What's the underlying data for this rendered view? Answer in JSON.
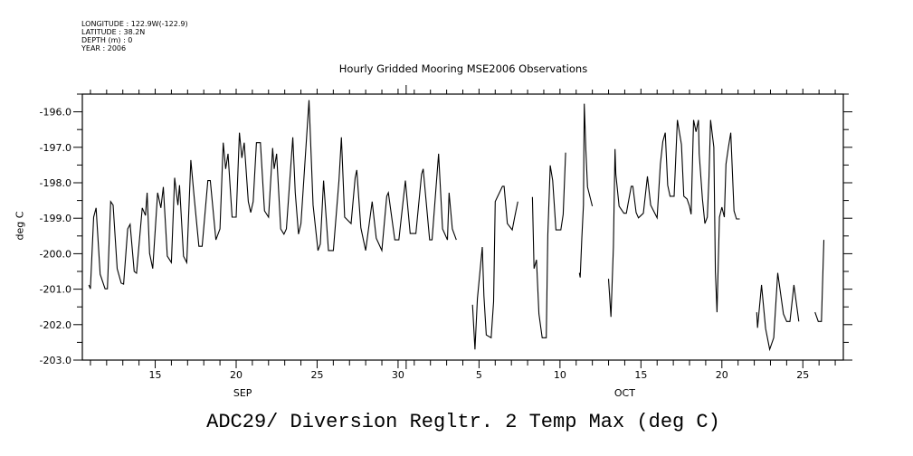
{
  "header": {
    "longitude": "LONGITUDE : 122.9W(-122.9)",
    "latitude": "LATITUDE : 38.2N",
    "depth": "DEPTH (m) : 0",
    "year": "YEAR : 2006"
  },
  "chart_data": {
    "type": "line",
    "title": "Hourly Gridded Mooring MSE2006 Observations",
    "xlabel": "",
    "ylabel": "deg C",
    "caption": "ADC29/ Diversion Regltr. 2 Temp Max (deg C)",
    "x_units": "day (Sep 1 = 1; Oct 5 = 35)",
    "xlim": [
      10.5,
      57.5
    ],
    "ylim": [
      -203.0,
      -195.5
    ],
    "grid": false,
    "x_ticks": [
      {
        "day": 15,
        "label": "15"
      },
      {
        "day": 20,
        "label": "20"
      },
      {
        "day": 25,
        "label": "25"
      },
      {
        "day": 30,
        "label": "30"
      },
      {
        "day": 35,
        "label": "5"
      },
      {
        "day": 40,
        "label": "10"
      },
      {
        "day": 45,
        "label": "15"
      },
      {
        "day": 50,
        "label": "20"
      },
      {
        "day": 55,
        "label": "25"
      }
    ],
    "month_labels": [
      {
        "day": 20.4,
        "label": "SEP"
      },
      {
        "day": 44.0,
        "label": "OCT"
      }
    ],
    "month_boundary_day": 30.5,
    "y_ticks": [
      "-196.0",
      "-197.0",
      "-198.0",
      "-199.0",
      "-200.0",
      "-201.0",
      "-202.0",
      "-203.0"
    ],
    "y_tick_values": [
      -196,
      -197,
      -198,
      -199,
      -200,
      -201,
      -202,
      -203
    ],
    "segments": [
      [
        [
          10.9,
          -200.88
        ],
        [
          11.0,
          -200.99
        ],
        [
          11.2,
          -198.97
        ],
        [
          11.35,
          -198.71
        ],
        [
          11.6,
          -200.58
        ],
        [
          11.9,
          -200.99
        ],
        [
          12.05,
          -200.99
        ],
        [
          12.25,
          -198.53
        ],
        [
          12.4,
          -198.63
        ],
        [
          12.65,
          -200.42
        ],
        [
          12.9,
          -200.83
        ],
        [
          13.05,
          -200.86
        ],
        [
          13.3,
          -199.3
        ],
        [
          13.45,
          -199.17
        ],
        [
          13.7,
          -200.5
        ],
        [
          13.85,
          -200.55
        ],
        [
          14.2,
          -198.71
        ],
        [
          14.4,
          -198.92
        ],
        [
          14.5,
          -198.28
        ],
        [
          14.65,
          -199.99
        ],
        [
          14.85,
          -200.42
        ],
        [
          15.15,
          -198.28
        ],
        [
          15.35,
          -198.71
        ],
        [
          15.5,
          -198.12
        ],
        [
          15.75,
          -200.07
        ],
        [
          16.0,
          -200.25
        ],
        [
          16.2,
          -197.86
        ],
        [
          16.4,
          -198.63
        ],
        [
          16.5,
          -198.07
        ],
        [
          16.75,
          -200.07
        ],
        [
          16.95,
          -200.25
        ],
        [
          17.2,
          -197.36
        ],
        [
          17.4,
          -198.38
        ],
        [
          17.7,
          -199.79
        ],
        [
          17.9,
          -199.79
        ],
        [
          18.25,
          -197.94
        ],
        [
          18.4,
          -197.94
        ],
        [
          18.75,
          -199.61
        ],
        [
          19.0,
          -199.3
        ],
        [
          19.2,
          -196.87
        ],
        [
          19.35,
          -197.61
        ],
        [
          19.5,
          -197.18
        ],
        [
          19.75,
          -198.97
        ],
        [
          20.0,
          -198.97
        ],
        [
          20.2,
          -196.59
        ],
        [
          20.35,
          -197.3
        ],
        [
          20.5,
          -196.87
        ],
        [
          20.75,
          -198.53
        ],
        [
          20.9,
          -198.84
        ],
        [
          21.05,
          -198.53
        ],
        [
          21.25,
          -196.87
        ],
        [
          21.5,
          -196.87
        ],
        [
          21.75,
          -198.79
        ],
        [
          22.0,
          -198.97
        ],
        [
          22.25,
          -197.02
        ],
        [
          22.35,
          -197.61
        ],
        [
          22.5,
          -197.18
        ],
        [
          22.75,
          -199.3
        ],
        [
          22.95,
          -199.45
        ],
        [
          23.1,
          -199.3
        ],
        [
          23.5,
          -196.72
        ],
        [
          23.65,
          -198.28
        ],
        [
          23.85,
          -199.45
        ],
        [
          24.0,
          -199.15
        ],
        [
          24.5,
          -195.67
        ],
        [
          24.75,
          -198.63
        ],
        [
          25.05,
          -199.91
        ],
        [
          25.2,
          -199.73
        ],
        [
          25.4,
          -197.94
        ],
        [
          25.7,
          -199.91
        ],
        [
          26.0,
          -199.91
        ],
        [
          26.35,
          -197.94
        ],
        [
          26.5,
          -196.72
        ],
        [
          26.7,
          -198.97
        ],
        [
          27.1,
          -199.15
        ],
        [
          27.35,
          -197.86
        ],
        [
          27.45,
          -197.64
        ],
        [
          27.7,
          -199.27
        ],
        [
          28.0,
          -199.91
        ],
        [
          28.4,
          -198.53
        ],
        [
          28.65,
          -199.56
        ],
        [
          29.0,
          -199.91
        ],
        [
          29.3,
          -198.38
        ],
        [
          29.4,
          -198.28
        ],
        [
          29.8,
          -199.61
        ],
        [
          30.05,
          -199.61
        ],
        [
          30.45,
          -197.94
        ],
        [
          30.75,
          -199.43
        ],
        [
          31.1,
          -199.43
        ],
        [
          31.45,
          -197.76
        ],
        [
          31.55,
          -197.61
        ],
        [
          31.95,
          -199.61
        ],
        [
          32.1,
          -199.61
        ],
        [
          32.5,
          -197.18
        ],
        [
          32.75,
          -199.3
        ],
        [
          33.05,
          -199.61
        ],
        [
          33.15,
          -198.28
        ],
        [
          33.35,
          -199.3
        ],
        [
          33.6,
          -199.61
        ]
      ],
      [
        [
          34.6,
          -201.44
        ],
        [
          34.75,
          -202.7
        ],
        [
          34.9,
          -201.27
        ],
        [
          35.2,
          -199.81
        ],
        [
          35.3,
          -201.19
        ],
        [
          35.45,
          -202.29
        ],
        [
          35.75,
          -202.37
        ],
        [
          35.9,
          -201.35
        ],
        [
          36.0,
          -198.53
        ],
        [
          36.45,
          -198.1
        ],
        [
          36.55,
          -198.1
        ],
        [
          36.75,
          -199.15
        ],
        [
          37.05,
          -199.33
        ],
        [
          37.2,
          -198.97
        ],
        [
          37.4,
          -198.53
        ]
      ],
      [
        [
          38.3,
          -198.4
        ],
        [
          38.4,
          -200.42
        ],
        [
          38.55,
          -200.17
        ],
        [
          38.7,
          -201.7
        ],
        [
          38.9,
          -202.37
        ],
        [
          39.15,
          -202.37
        ],
        [
          39.25,
          -199.48
        ],
        [
          39.4,
          -197.51
        ],
        [
          39.55,
          -197.94
        ],
        [
          39.75,
          -199.33
        ],
        [
          40.05,
          -199.33
        ],
        [
          40.2,
          -198.89
        ],
        [
          40.35,
          -197.15
        ]
      ],
      [
        [
          41.2,
          -200.54
        ],
        [
          41.25,
          -200.67
        ],
        [
          41.35,
          -199.56
        ],
        [
          41.45,
          -198.63
        ],
        [
          41.5,
          -195.77
        ],
        [
          41.6,
          -197.1
        ],
        [
          41.7,
          -198.12
        ],
        [
          42.0,
          -198.66
        ]
      ],
      [
        [
          43.0,
          -200.71
        ],
        [
          43.15,
          -201.78
        ],
        [
          43.3,
          -199.81
        ],
        [
          43.4,
          -197.05
        ],
        [
          43.45,
          -197.76
        ],
        [
          43.65,
          -198.66
        ],
        [
          43.95,
          -198.86
        ],
        [
          44.1,
          -198.86
        ],
        [
          44.4,
          -198.1
        ],
        [
          44.5,
          -198.1
        ],
        [
          44.7,
          -198.84
        ],
        [
          44.85,
          -198.99
        ],
        [
          45.15,
          -198.86
        ],
        [
          45.4,
          -197.82
        ],
        [
          45.6,
          -198.63
        ],
        [
          46.0,
          -198.99
        ],
        [
          46.2,
          -197.48
        ],
        [
          46.35,
          -196.84
        ],
        [
          46.5,
          -196.59
        ],
        [
          46.65,
          -198.07
        ],
        [
          46.8,
          -198.38
        ],
        [
          47.05,
          -198.38
        ],
        [
          47.25,
          -196.23
        ],
        [
          47.5,
          -196.92
        ],
        [
          47.65,
          -198.38
        ],
        [
          47.85,
          -198.46
        ],
        [
          48.0,
          -198.66
        ],
        [
          48.1,
          -198.89
        ],
        [
          48.25,
          -196.23
        ],
        [
          48.4,
          -196.56
        ],
        [
          48.55,
          -196.23
        ],
        [
          48.6,
          -197.18
        ],
        [
          48.8,
          -198.46
        ],
        [
          48.95,
          -199.15
        ],
        [
          49.1,
          -198.97
        ],
        [
          49.2,
          -197.86
        ],
        [
          49.3,
          -196.23
        ],
        [
          49.5,
          -197.0
        ],
        [
          49.6,
          -200.5
        ],
        [
          49.7,
          -201.65
        ],
        [
          49.85,
          -198.97
        ],
        [
          50.0,
          -198.69
        ],
        [
          50.15,
          -198.97
        ],
        [
          50.25,
          -197.48
        ],
        [
          50.4,
          -197.0
        ],
        [
          50.55,
          -196.59
        ],
        [
          50.75,
          -198.79
        ],
        [
          50.9,
          -199.02
        ],
        [
          51.1,
          -199.02
        ]
      ],
      [
        [
          52.15,
          -201.65
        ],
        [
          52.2,
          -202.09
        ],
        [
          52.45,
          -200.88
        ],
        [
          52.7,
          -202.11
        ],
        [
          52.95,
          -202.7
        ],
        [
          53.2,
          -202.37
        ],
        [
          53.45,
          -200.54
        ],
        [
          53.8,
          -201.7
        ],
        [
          54.0,
          -201.91
        ],
        [
          54.2,
          -201.91
        ],
        [
          54.45,
          -200.88
        ],
        [
          54.75,
          -201.91
        ]
      ],
      [
        [
          55.75,
          -201.65
        ],
        [
          55.95,
          -201.91
        ],
        [
          56.15,
          -201.91
        ],
        [
          56.3,
          -199.61
        ]
      ]
    ]
  }
}
